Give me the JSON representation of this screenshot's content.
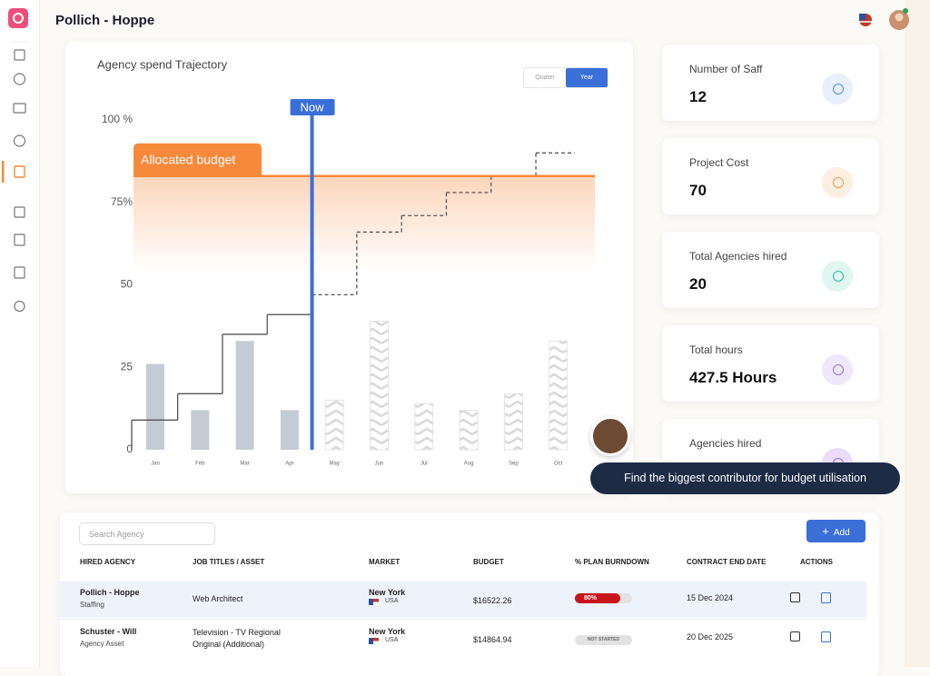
{
  "header": {
    "title": "Pollich - Hoppe"
  },
  "chart_data": {
    "type": "bar",
    "title": "Agency spend Trajectory",
    "toggle": [
      "Quater",
      "Year"
    ],
    "active_toggle": 1,
    "categories": [
      "Jan",
      "Feb",
      "Mar",
      "Apr",
      "May",
      "Jun",
      "Jul",
      "Aug",
      "Sep",
      "Oct"
    ],
    "values": [
      26,
      12,
      33,
      12,
      15,
      39,
      14,
      12,
      17,
      33
    ],
    "projected": [
      false,
      false,
      false,
      false,
      true,
      true,
      true,
      true,
      true,
      true
    ],
    "color": "#c5cbd4",
    "ylim": [
      0,
      100
    ],
    "yticks": [
      0,
      25,
      50,
      {
        "value": 75,
        "label": "75%"
      },
      {
        "value": 100,
        "label": "100 %"
      }
    ],
    "line": {
      "values": [
        9,
        17,
        35,
        41,
        47,
        66,
        71,
        78,
        83,
        90
      ],
      "color": "#555555"
    },
    "budget": {
      "label": "Allocated budget",
      "value": 83,
      "color": "#f7893b"
    },
    "now": {
      "label": "Now",
      "color": "#3b6fd8"
    }
  },
  "stats": [
    {
      "label": "Number of Saff",
      "value": "12"
    },
    {
      "label": "Project Cost",
      "value": "70"
    },
    {
      "label": "Total Agencies hired",
      "value": "20"
    },
    {
      "label": "Total hours",
      "value": "427.5 Hours"
    },
    {
      "label": "Agencies hired"
    }
  ],
  "assistant": {
    "message": "Find the biggest contributor for budget utilisation"
  },
  "table": {
    "search_placeholder": "Search Agency",
    "add": "Add",
    "columns": [
      "HIRED AGENCY",
      "JOB TITLES / ASSET",
      "MARKET",
      "BUDGET",
      "% PLAN BURNDOWN",
      "CONTRACT END DATE",
      "ACTIONS"
    ],
    "rows": [
      {
        "agency": "Pollich - Hoppe",
        "type": "Staffing",
        "job": "Web Architect",
        "city": "New York",
        "country": "USA",
        "budget": "$16522.26",
        "burndown": 80,
        "burndown_label": "80%",
        "end": "15 Dec 2024"
      },
      {
        "agency": "Schuster - Will",
        "type": "Agency Asset",
        "job": "Television - TV Regional Original (Additional)",
        "city": "New York",
        "country": "USA",
        "budget": "$14864.94",
        "status": "NOT STARTED",
        "end": "20 Dec 2025"
      }
    ]
  }
}
